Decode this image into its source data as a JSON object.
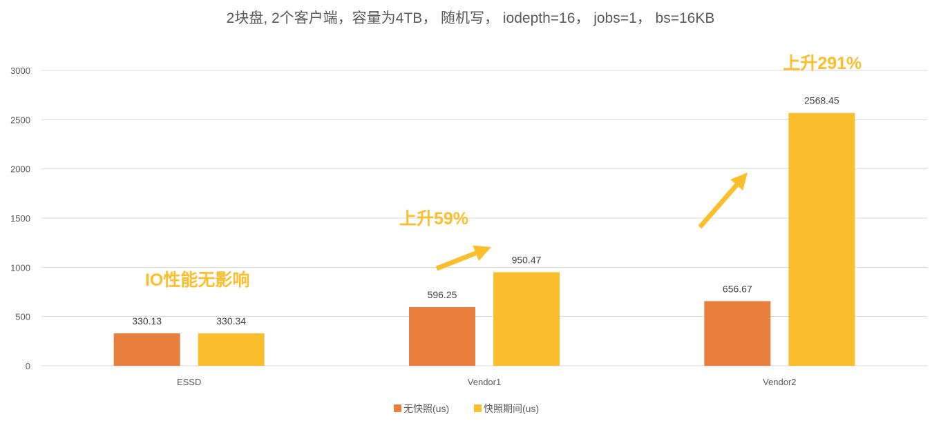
{
  "colors": {
    "series_a": "#E97F3D",
    "series_b": "#FBBF2E",
    "annotation": "#FBBF2E",
    "grid": "#D9D9D9",
    "text": "#595959"
  },
  "chart_data": {
    "type": "bar",
    "title": "2块盘, 2个客户端，容量为4TB， 随机写， iodepth=16， jobs=1， bs=16KB",
    "xlabel": "",
    "ylabel": "",
    "categories": [
      "ESSD",
      "Vendor1",
      "Vendor2"
    ],
    "series": [
      {
        "name": "无快照(us)",
        "values": [
          330.13,
          596.25,
          656.67
        ]
      },
      {
        "name": "快照期间(us)",
        "values": [
          330.34,
          950.47,
          2568.45
        ]
      }
    ],
    "data_labels": [
      [
        "330.13",
        "596.25",
        "656.67"
      ],
      [
        "330.34",
        "950.47",
        "2568.45"
      ]
    ],
    "ylim": [
      0,
      3000
    ],
    "yticks": [
      0,
      500,
      1000,
      1500,
      2000,
      2500,
      3000
    ],
    "grid": true,
    "legend_position": "bottom",
    "annotations": [
      {
        "category": "ESSD",
        "text": "IO性能无影响"
      },
      {
        "category": "Vendor1",
        "text": "上升59%"
      },
      {
        "category": "Vendor2",
        "text": "上升291%"
      }
    ]
  }
}
